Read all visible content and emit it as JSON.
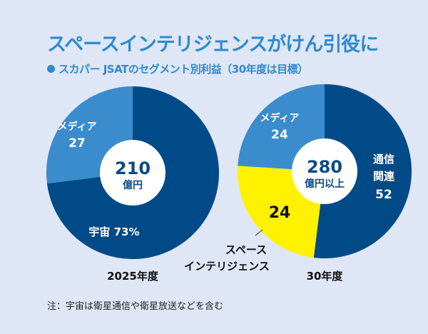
{
  "title": "スペースインテリジェンスがけん引役に",
  "subtitle": "スカパー JSATのセグメント別利益（30年度は目標）",
  "note": "注：宇宙は衛星通信や衛星放送などを含む",
  "colors": {
    "dark": "#004a87",
    "medium": "#3a8ccc",
    "yellow": "#fff200",
    "title": "#2e8bd0"
  },
  "chart_data": [
    {
      "type": "pie",
      "label": "2025年度",
      "center_value": "210",
      "center_unit": "億円",
      "slices": [
        {
          "name": "宇宙",
          "value": 73,
          "value_label": "73%",
          "color": "#004a87"
        },
        {
          "name": "メディア",
          "value": 27,
          "value_label": "27",
          "color": "#3a8ccc"
        }
      ]
    },
    {
      "type": "pie",
      "label": "30年度",
      "center_value": "280",
      "center_unit": "億円以上",
      "slices": [
        {
          "name": "通信関連",
          "value": 52,
          "value_label": "52",
          "color": "#004a87"
        },
        {
          "name": "スペースインテリジェンス",
          "value": 24,
          "value_label": "24",
          "color": "#fff200"
        },
        {
          "name": "メディア",
          "value": 24,
          "value_label": "24",
          "color": "#3a8ccc"
        }
      ]
    }
  ]
}
